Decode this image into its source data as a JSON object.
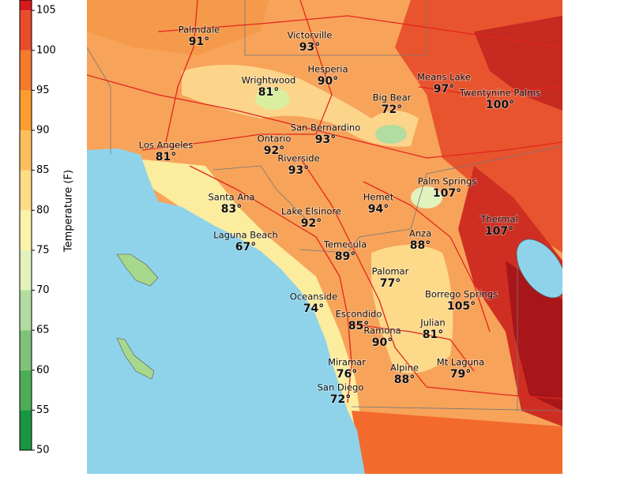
{
  "colorbar": {
    "label": "Temperature (F)",
    "range": [
      50,
      106.3
    ],
    "ticks": [
      50,
      55,
      60,
      65,
      70,
      75,
      80,
      85,
      90,
      95,
      100,
      105
    ],
    "colors": [
      "#1a9641",
      "#4dac56",
      "#7fc27a",
      "#b3dca0",
      "#e1f2bd",
      "#fbf3a8",
      "#fddc86",
      "#fdbf5e",
      "#fb9d2f",
      "#f47a2c",
      "#e84c2a",
      "#d7191c",
      "#a50f15"
    ]
  },
  "cities": [
    {
      "name": "Palmdale",
      "temp": "91°"
    },
    {
      "name": "Victorville",
      "temp": "93°"
    },
    {
      "name": "Hesperia",
      "temp": "90°"
    },
    {
      "name": "Wrightwood",
      "temp": "81°"
    },
    {
      "name": "Means Lake",
      "temp": "97°"
    },
    {
      "name": "Twentynine Palms",
      "temp": "100°"
    },
    {
      "name": "Big Bear",
      "temp": "72°"
    },
    {
      "name": "San Bernardino",
      "temp": "93°"
    },
    {
      "name": "Ontario",
      "temp": "92°"
    },
    {
      "name": "Los Angeles",
      "temp": "81°"
    },
    {
      "name": "Riverside",
      "temp": "93°"
    },
    {
      "name": "Palm Springs",
      "temp": "107°"
    },
    {
      "name": "Santa Ana",
      "temp": "83°"
    },
    {
      "name": "Hemet",
      "temp": "94°"
    },
    {
      "name": "Thermal",
      "temp": "107°"
    },
    {
      "name": "Lake Elsinore",
      "temp": "92°"
    },
    {
      "name": "Laguna Beach",
      "temp": "67°"
    },
    {
      "name": "Anza",
      "temp": "88°"
    },
    {
      "name": "Temecula",
      "temp": "89°"
    },
    {
      "name": "Palomar",
      "temp": "77°"
    },
    {
      "name": "Oceanside",
      "temp": "74°"
    },
    {
      "name": "Borrego Springs",
      "temp": "105°"
    },
    {
      "name": "Escondido",
      "temp": "85°"
    },
    {
      "name": "Julian",
      "temp": "81°"
    },
    {
      "name": "Ramona",
      "temp": "90°"
    },
    {
      "name": "Miramar",
      "temp": "76°"
    },
    {
      "name": "Mt Laguna",
      "temp": "79°"
    },
    {
      "name": "Alpine",
      "temp": "88°"
    },
    {
      "name": "San Diego",
      "temp": "72°"
    }
  ]
}
